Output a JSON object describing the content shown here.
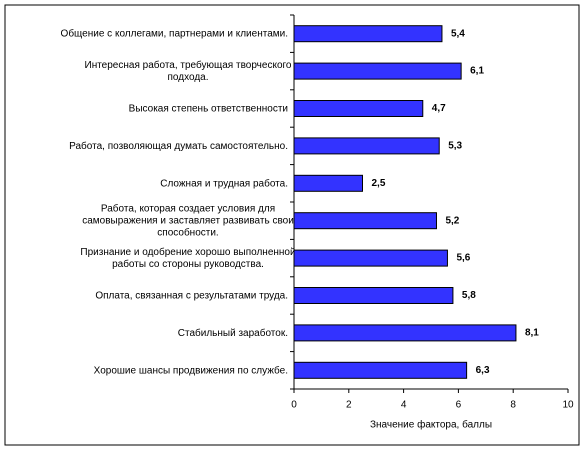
{
  "chart_data": {
    "type": "bar",
    "orientation": "horizontal",
    "categories": [
      "Общение с коллегами, партнерами и клиентами.",
      "Интересная работа, требующая творческого\nподхода.",
      "Высокая степень ответственности",
      "Работа, позволяющая думать самостоятельно.",
      "Сложная и трудная работа.",
      "Работа, которая создает условия для\nсамовыражения и заставляет развивать свои\nспособности.",
      "Признание и одобрение хорошо выполненной\nработы со стороны руководства.",
      "Оплата, связанная с результатами труда.",
      "Стабильный заработок.",
      "Хорошие шансы продвижения по службе."
    ],
    "values": [
      5.4,
      6.1,
      4.7,
      5.3,
      2.5,
      5.2,
      5.6,
      5.8,
      8.1,
      6.3
    ],
    "value_labels": [
      "5,4",
      "6,1",
      "4,7",
      "5,3",
      "2,5",
      "5,2",
      "5,6",
      "5,8",
      "8,1",
      "6,3"
    ],
    "color": "#3333ff",
    "xlabel": "Значение фактора, баллы",
    "xlim": [
      0,
      10
    ],
    "xticks": [
      0,
      2,
      4,
      6,
      8,
      10
    ]
  }
}
